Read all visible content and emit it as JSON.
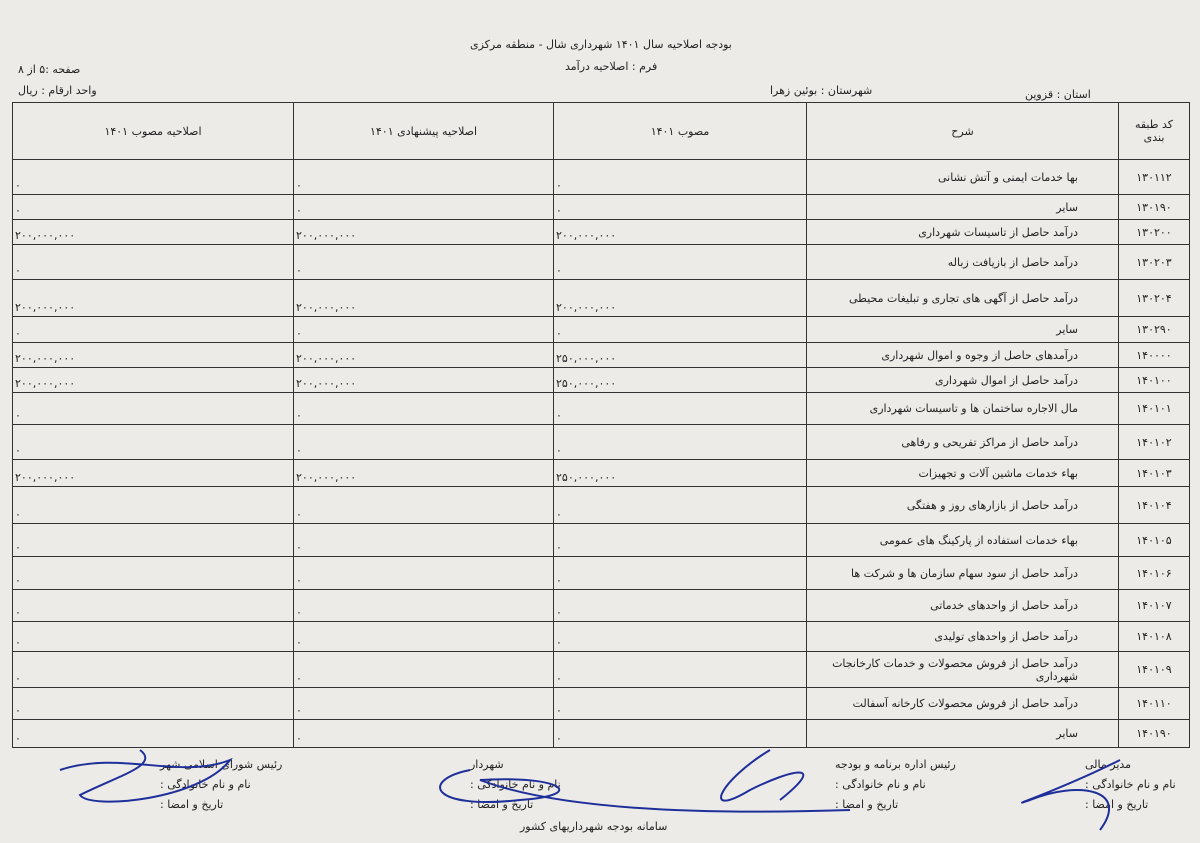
{
  "header": {
    "title": "بودجه اصلاحیه سال ۱۴۰۱ شهرداری شال - منطقه مرکزی",
    "form": "فرم : اصلاحیه درآمد",
    "page": "صفحه :۵ از ۸",
    "unit": "واحد ارقام : ریال",
    "province": "استان :  قزوین",
    "county": "شهرستان :  بوئین زهرا"
  },
  "table": {
    "columns": [
      "کد طبقه بندی",
      "شرح",
      "مصوب ۱۴۰۱",
      "اصلاحیه پیشنهادی ۱۴۰۱",
      "اصلاحیه مصوب ۱۴۰۱"
    ],
    "rows": [
      {
        "code": "۱۳۰۱۱۲",
        "desc": "بها خدمات ایمنی و آتش نشانی",
        "approved": "۰",
        "proposed": "۰",
        "amended": "۰"
      },
      {
        "code": "۱۳۰۱۹۰",
        "desc": "سایر",
        "approved": "۰",
        "proposed": "۰",
        "amended": "۰"
      },
      {
        "code": "۱۳۰۲۰۰",
        "desc": "درآمد حاصل از تاسیسات شهرداری",
        "approved": "۲۰۰,۰۰۰,۰۰۰",
        "proposed": "۲۰۰,۰۰۰,۰۰۰",
        "amended": "۲۰۰,۰۰۰,۰۰۰"
      },
      {
        "code": "۱۳۰۲۰۳",
        "desc": "درآمد حاصل از بازیافت زباله",
        "approved": "۰",
        "proposed": "۰",
        "amended": "۰"
      },
      {
        "code": "۱۳۰۲۰۴",
        "desc": "درآمد حاصل از آگهی های تجاری و تبلیغات محیطی",
        "approved": "۲۰۰,۰۰۰,۰۰۰",
        "proposed": "۲۰۰,۰۰۰,۰۰۰",
        "amended": "۲۰۰,۰۰۰,۰۰۰"
      },
      {
        "code": "۱۳۰۲۹۰",
        "desc": "سایر",
        "approved": "۰",
        "proposed": "۰",
        "amended": "۰"
      },
      {
        "code": "۱۴۰۰۰۰",
        "desc": "درآمدهای حاصل از وجوه و اموال شهرداری",
        "approved": "۲۵۰,۰۰۰,۰۰۰",
        "proposed": "۲۰۰,۰۰۰,۰۰۰",
        "amended": "۲۰۰,۰۰۰,۰۰۰"
      },
      {
        "code": "۱۴۰۱۰۰",
        "desc": "درآمد حاصل از اموال شهرداری",
        "approved": "۲۵۰,۰۰۰,۰۰۰",
        "proposed": "۲۰۰,۰۰۰,۰۰۰",
        "amended": "۲۰۰,۰۰۰,۰۰۰"
      },
      {
        "code": "۱۴۰۱۰۱",
        "desc": "مال الاجاره ساختمان ها و تاسیسات شهرداری",
        "approved": "۰",
        "proposed": "۰",
        "amended": "۰"
      },
      {
        "code": "۱۴۰۱۰۲",
        "desc": "درآمد حاصل از مراکز تفریحی و رفاهی",
        "approved": "۰",
        "proposed": "۰",
        "amended": "۰"
      },
      {
        "code": "۱۴۰۱۰۳",
        "desc": "بهاء خدمات ماشین آلات و تجهیزات",
        "approved": "۲۵۰,۰۰۰,۰۰۰",
        "proposed": "۲۰۰,۰۰۰,۰۰۰",
        "amended": "۲۰۰,۰۰۰,۰۰۰"
      },
      {
        "code": "۱۴۰۱۰۴",
        "desc": "درآمد حاصل از بازارهای روز و هفتگی",
        "approved": "۰",
        "proposed": "۰",
        "amended": "۰"
      },
      {
        "code": "۱۴۰۱۰۵",
        "desc": "بهاء خدمات استفاده از پارکینگ های عمومی",
        "approved": "۰",
        "proposed": "۰",
        "amended": "۰"
      },
      {
        "code": "۱۴۰۱۰۶",
        "desc": "درآمد حاصل از سود سهام سازمان ها و شرکت ها",
        "approved": "۰",
        "proposed": "۰",
        "amended": "۰"
      },
      {
        "code": "۱۴۰۱۰۷",
        "desc": "درآمد حاصل از واحدهای خدماتی",
        "approved": "۰",
        "proposed": "۰",
        "amended": "۰"
      },
      {
        "code": "۱۴۰۱۰۸",
        "desc": "درآمد حاصل از واحدهای تولیدی",
        "approved": "۰",
        "proposed": "۰",
        "amended": "۰"
      },
      {
        "code": "۱۴۰۱۰۹",
        "desc": "درآمد حاصل از فروش محصولات و خدمات کارخانجات شهرداری",
        "approved": "۰",
        "proposed": "۰",
        "amended": "۰"
      },
      {
        "code": "۱۴۰۱۱۰",
        "desc": "درآمد حاصل از فروش محصولات کارخانه آسفالت",
        "approved": "۰",
        "proposed": "۰",
        "amended": "۰"
      },
      {
        "code": "۱۴۰۱۹۰",
        "desc": "سایر",
        "approved": "۰",
        "proposed": "۰",
        "amended": "۰"
      }
    ]
  },
  "signatures": [
    {
      "title": "مدیر مالی",
      "name": "نام و نام خانوادگی :",
      "date": "تاریخ و امضا :"
    },
    {
      "title": "رئیس اداره برنامه و بودجه",
      "name": "نام و نام خانوادگی :",
      "date": "تاریخ و امضا :"
    },
    {
      "title": "شهردار",
      "name": "نام و نام خانوادگی :",
      "date": "تاریخ و امضا :"
    },
    {
      "title": "رئیس شورای اسلامی شهر",
      "name": "نام و نام خانوادگی :",
      "date": "تاریخ و امضا :"
    }
  ],
  "footer": "سامانه بودجه شهرداریهای کشور",
  "ink_color": "#1f2f9a"
}
